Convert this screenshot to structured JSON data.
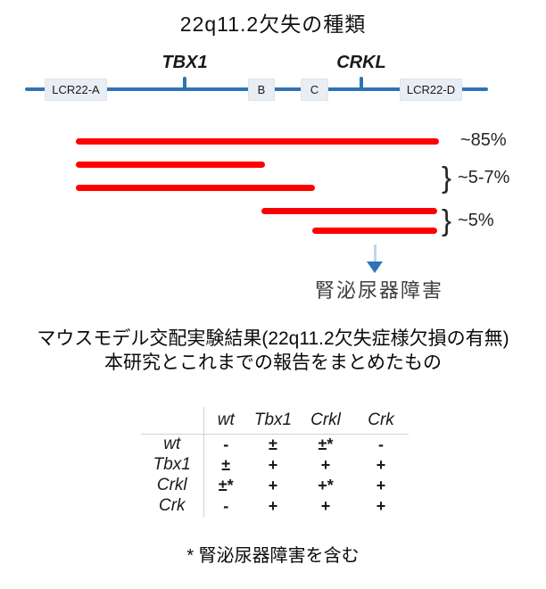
{
  "title": "22q11.2欠失の種類",
  "ideogram": {
    "genes": [
      {
        "label": "TBX1"
      },
      {
        "label": "CRKL"
      }
    ],
    "segments": [
      {
        "label": "LCR22-A"
      },
      {
        "label": "B"
      },
      {
        "label": "C"
      },
      {
        "label": "LCR22-D"
      }
    ]
  },
  "deletions": {
    "brace_char": "}",
    "groups": [
      {
        "label": "~85%"
      },
      {
        "label": "~5-7%"
      },
      {
        "label": "~5%"
      }
    ]
  },
  "arrow_note": "腎泌尿器障害",
  "section_title": {
    "line1": "マウスモデル交配実験結果(22q11.2欠失症様欠損の有無)",
    "line2": "本研究とこれまでの報告をまとめたもの"
  },
  "table": {
    "col_headers": [
      "wt",
      "Tbx1",
      "Crkl",
      "Crk"
    ],
    "rows": [
      {
        "header": "wt",
        "cells": [
          "-",
          "±",
          "±*",
          "-"
        ]
      },
      {
        "header": "Tbx1",
        "cells": [
          "±",
          "+",
          "+",
          "+"
        ]
      },
      {
        "header": "Crkl",
        "cells": [
          "±*",
          "+",
          "+*",
          "+"
        ]
      },
      {
        "header": "Crk",
        "cells": [
          "-",
          "+",
          "+",
          "+"
        ]
      }
    ]
  },
  "footnote": "* 腎泌尿器障害を含む",
  "colors": {
    "accent_blue": "#2E74B5",
    "light_blue": "#BDD7EE",
    "deletion_red": "#FF0000",
    "segment_fill": "#E9EDF4",
    "table_line": "#D0D0D0"
  }
}
